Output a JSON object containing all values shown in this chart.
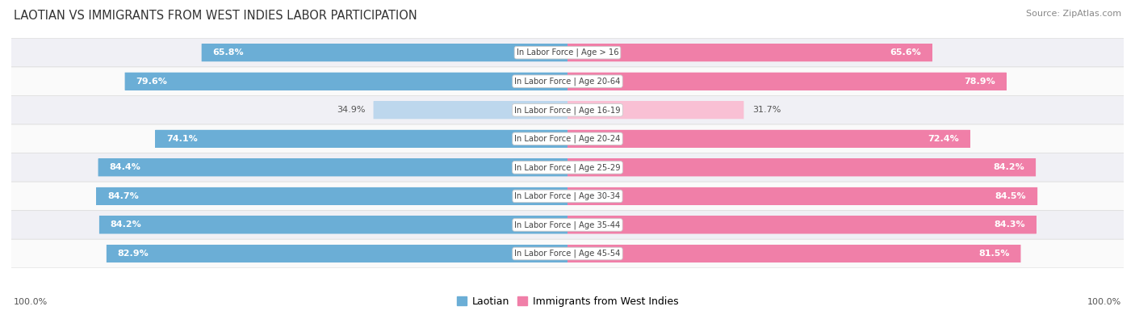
{
  "title": "LAOTIAN VS IMMIGRANTS FROM WEST INDIES LABOR PARTICIPATION",
  "source": "Source: ZipAtlas.com",
  "categories": [
    "In Labor Force | Age > 16",
    "In Labor Force | Age 20-64",
    "In Labor Force | Age 16-19",
    "In Labor Force | Age 20-24",
    "In Labor Force | Age 25-29",
    "In Labor Force | Age 30-34",
    "In Labor Force | Age 35-44",
    "In Labor Force | Age 45-54"
  ],
  "laotian_values": [
    65.8,
    79.6,
    34.9,
    74.1,
    84.4,
    84.7,
    84.2,
    82.9
  ],
  "westindies_values": [
    65.6,
    78.9,
    31.7,
    72.4,
    84.2,
    84.5,
    84.3,
    81.5
  ],
  "laotian_color": "#6baed6",
  "laotian_color_light": "#bdd7ed",
  "westindies_color": "#f07fa8",
  "westindies_color_light": "#f9c0d4",
  "row_bg_even": "#f0f0f5",
  "row_bg_odd": "#fafafa",
  "label_white": "#ffffff",
  "label_dark": "#555555",
  "title_color": "#333333",
  "source_color": "#888888",
  "max_value": 100.0,
  "legend_laotian": "Laotian",
  "legend_westindies": "Immigrants from West Indies",
  "bottom_label": "100.0%"
}
